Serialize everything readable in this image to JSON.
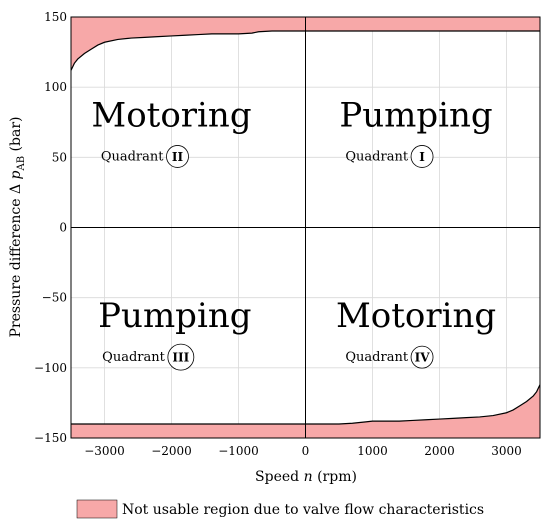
{
  "chart_data": {
    "type": "area",
    "xlabel": "Speed n (rpm)",
    "ylabel": "Pressure difference Δ p_AB (bar)",
    "xlim": [
      -3500,
      3500
    ],
    "ylim": [
      -150,
      150
    ],
    "x_ticks": [
      -3000,
      -2000,
      -1000,
      0,
      1000,
      2000,
      3000
    ],
    "x_tick_labels": [
      "−3000",
      "−2000",
      "−1000",
      "0",
      "1000",
      "2000",
      "3000"
    ],
    "y_ticks": [
      -150,
      -100,
      -50,
      0,
      50,
      100,
      150
    ],
    "y_tick_labels": [
      "−150",
      "−100",
      "−50",
      "0",
      "50",
      "100",
      "150"
    ],
    "grid": true,
    "fill_color": "#f7a8a8",
    "upper_boundary": {
      "x": [
        -3500,
        -3450,
        -3400,
        -3300,
        -3200,
        -3100,
        -3000,
        -2800,
        -2600,
        -2400,
        -2200,
        -2000,
        -1800,
        -1600,
        -1400,
        -1200,
        -1000,
        -800,
        -700,
        -500,
        0,
        3500
      ],
      "y": [
        112,
        117,
        120,
        124,
        127,
        130,
        132,
        134,
        135,
        135.5,
        136,
        136.5,
        137,
        137.5,
        138,
        138,
        138,
        138.5,
        139.5,
        140,
        140,
        140
      ]
    },
    "lower_boundary": {
      "x": [
        -3500,
        0,
        500,
        700,
        900,
        1000,
        1200,
        1400,
        1600,
        1800,
        2000,
        2200,
        2400,
        2600,
        2800,
        3000,
        3100,
        3200,
        3300,
        3400,
        3450,
        3500
      ],
      "y": [
        -140,
        -140,
        -140,
        -139.5,
        -138.5,
        -138,
        -138,
        -138,
        -137.5,
        -137,
        -136.5,
        -136,
        -135.5,
        -135,
        -134,
        -132,
        -130,
        -127,
        -124,
        -120,
        -117,
        -112
      ]
    },
    "quadrants": [
      {
        "mode": "Motoring",
        "label": "Quadrant",
        "roman": "II",
        "x": -2000,
        "y": 72
      },
      {
        "mode": "Pumping",
        "label": "Quadrant",
        "roman": "I",
        "x": 1650,
        "y": 72
      },
      {
        "mode": "Pumping",
        "label": "Quadrant",
        "roman": "III",
        "x": -1950,
        "y": -71
      },
      {
        "mode": "Motoring",
        "label": "Quadrant",
        "roman": "IV",
        "x": 1650,
        "y": -71
      }
    ],
    "legend": {
      "label": "Not usable region due to valve flow characteristics",
      "placement": "bottom"
    }
  }
}
